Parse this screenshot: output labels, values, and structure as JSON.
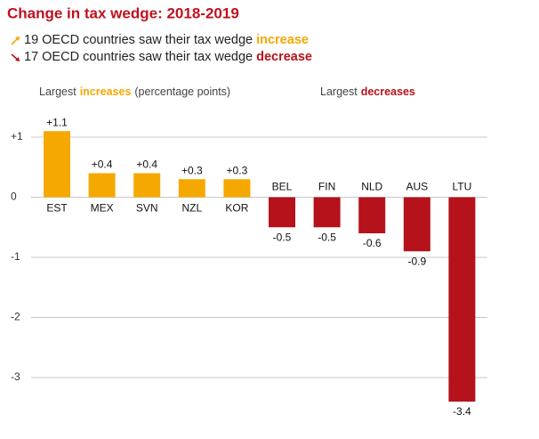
{
  "chart_data": {
    "type": "bar",
    "title": "Change in tax wedge: 2018-2019",
    "notes": [
      {
        "text": "19 OECD countries saw their tax wedge",
        "highlight": "increase",
        "color": "#f5a800"
      },
      {
        "text": "17 OECD countries saw their tax wedge",
        "highlight": "decrease",
        "color": "#b5121b"
      }
    ],
    "group_labels": [
      {
        "text": "Largest",
        "highlight": "increases",
        "suffix": "(percentage points)",
        "color": "#f5a800"
      },
      {
        "text": "Largest",
        "highlight": "decreases",
        "color": "#b5121b"
      }
    ],
    "categories": [
      "EST",
      "MEX",
      "SVN",
      "NZL",
      "KOR",
      "BEL",
      "FIN",
      "NLD",
      "AUS",
      "LTU"
    ],
    "values": [
      1.1,
      0.4,
      0.4,
      0.3,
      0.3,
      -0.5,
      -0.5,
      -0.6,
      -0.9,
      -3.4
    ],
    "value_labels": [
      "+1.1",
      "+0.4",
      "+0.4",
      "+0.3",
      "+0.3",
      "-0.5",
      "-0.5",
      "-0.6",
      "-0.9",
      "-3.4"
    ],
    "colors": [
      "#f5a800",
      "#f5a800",
      "#f5a800",
      "#f5a800",
      "#f5a800",
      "#b5121b",
      "#b5121b",
      "#b5121b",
      "#b5121b",
      "#b5121b"
    ],
    "ylim": [
      -3.6,
      1.4
    ],
    "yticks": [
      {
        "value": 1,
        "label": "+1"
      },
      0,
      -1,
      -2,
      -3
    ],
    "grid": true
  }
}
